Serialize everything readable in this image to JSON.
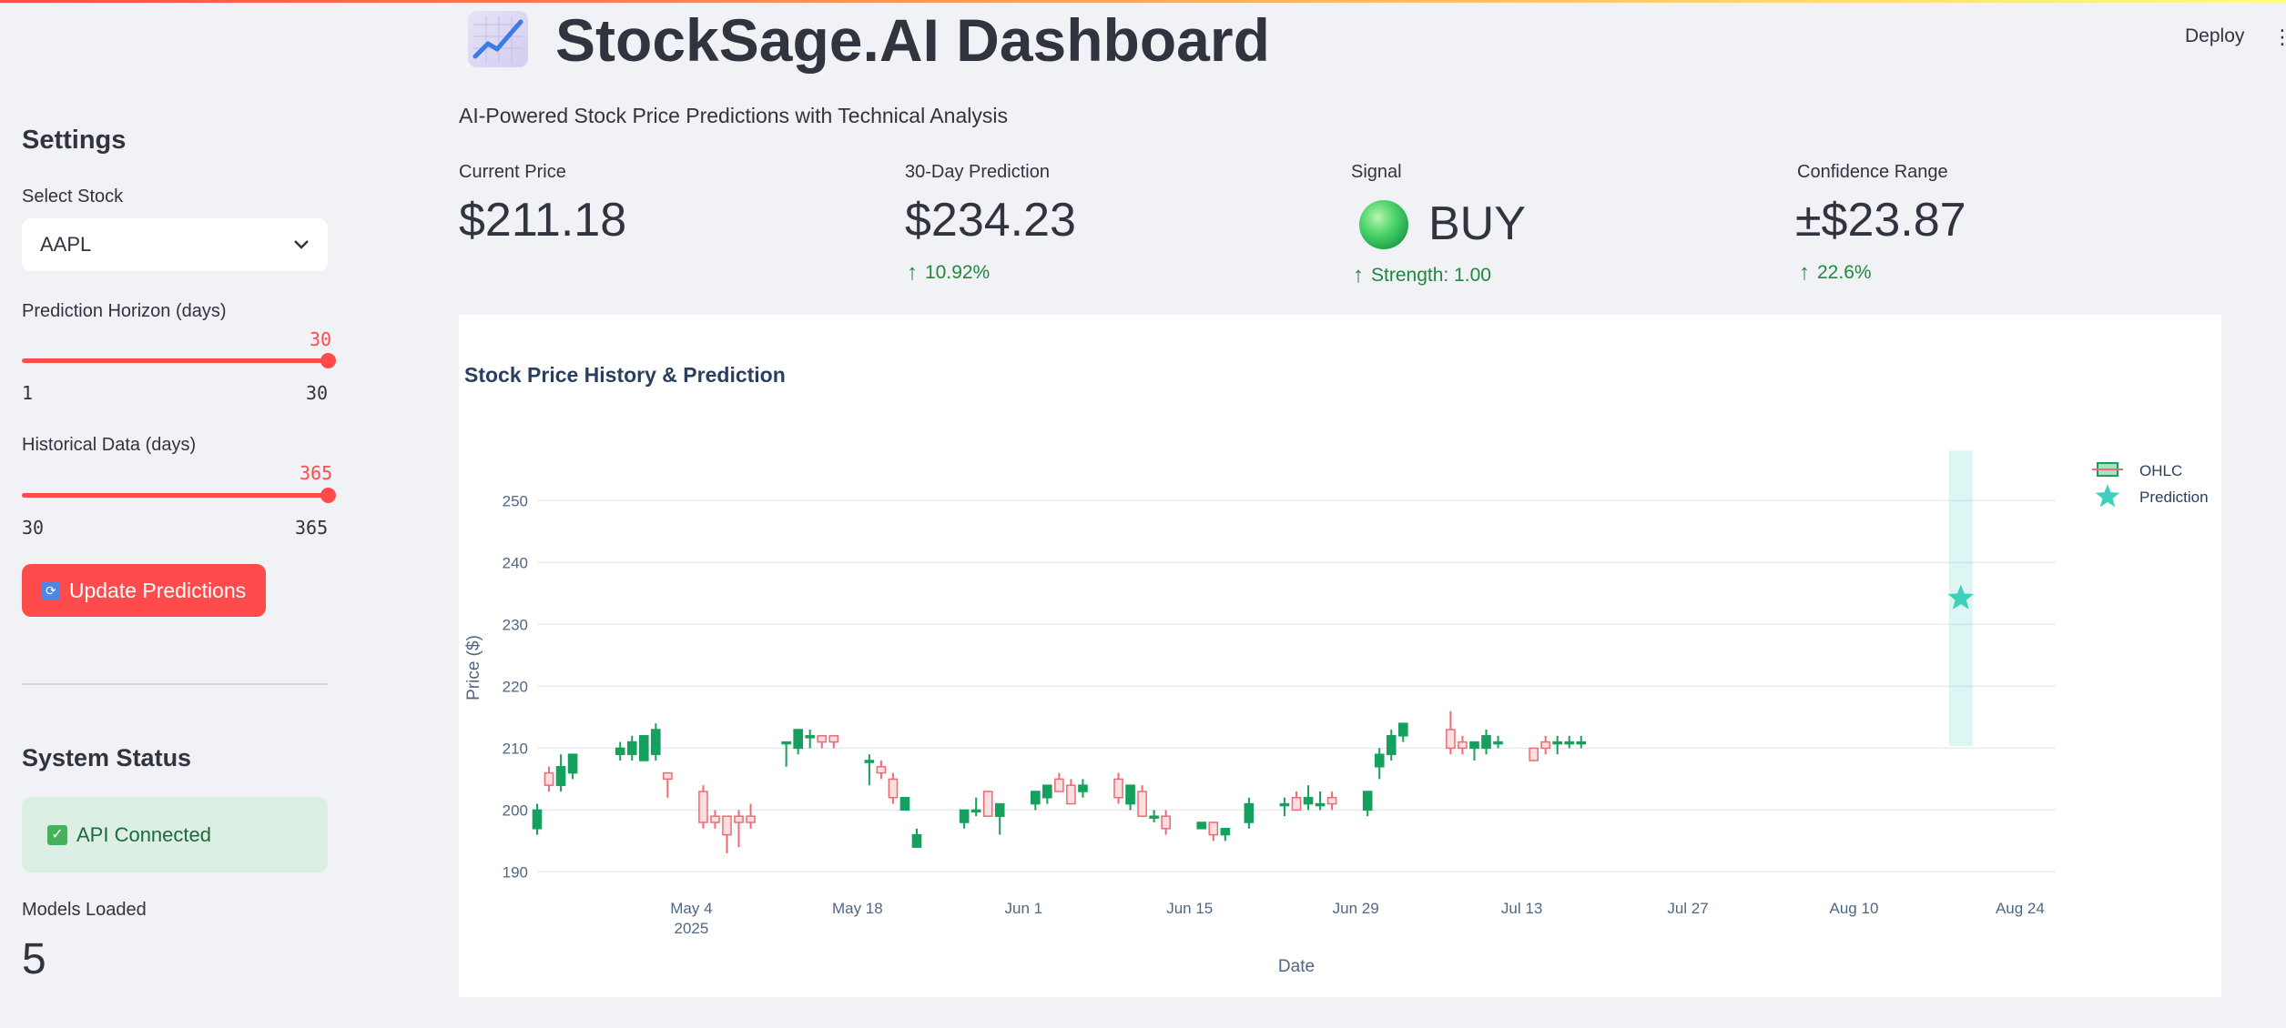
{
  "header": {
    "deploy_label": "Deploy",
    "menu_glyph": "⋮"
  },
  "sidebar": {
    "settings_title": "Settings",
    "select_stock_label": "Select Stock",
    "select_stock_value": "AAPL",
    "horizon": {
      "label": "Prediction Horizon (days)",
      "value": "30",
      "min": "1",
      "max": "30"
    },
    "history": {
      "label": "Historical Data (days)",
      "value": "365",
      "min": "30",
      "max": "365"
    },
    "update_button": "Update Predictions",
    "system_status_title": "System Status",
    "api_status": "API Connected",
    "models_loaded_label": "Models Loaded",
    "models_loaded_value": "5"
  },
  "main": {
    "title": "StockSage.AI Dashboard",
    "subtitle": "AI-Powered Stock Price Predictions with Technical Analysis",
    "metrics": {
      "current_price": {
        "label": "Current Price",
        "value": "$211.18"
      },
      "prediction": {
        "label": "30-Day Prediction",
        "value": "$234.23",
        "delta": "10.92%"
      },
      "signal": {
        "label": "Signal",
        "value": "BUY",
        "delta": "Strength: 1.00"
      },
      "confidence": {
        "label": "Confidence Range",
        "value": "±$23.87",
        "delta": "22.6%"
      }
    }
  },
  "colors": {
    "accent": "#ff4b4b",
    "up": "#21873d",
    "candle_up": "#16a05e",
    "candle_down": "#f06a72",
    "prediction": "#3fd0bd"
  },
  "chart_data": {
    "type": "candlestick",
    "title": "Stock Price History & Prediction",
    "xlabel": "Date",
    "ylabel": "Price ($)",
    "ylim": [
      188,
      258
    ],
    "xlim": [
      "2025-04-21",
      "2025-08-27"
    ],
    "yticks": [
      190,
      200,
      210,
      220,
      230,
      240,
      250
    ],
    "xticks": [
      {
        "date": "2025-05-04",
        "label": "May 4",
        "sublabel": "2025"
      },
      {
        "date": "2025-05-18",
        "label": "May 18",
        "sublabel": ""
      },
      {
        "date": "2025-06-01",
        "label": "Jun 1",
        "sublabel": ""
      },
      {
        "date": "2025-06-15",
        "label": "Jun 15",
        "sublabel": ""
      },
      {
        "date": "2025-06-29",
        "label": "Jun 29",
        "sublabel": ""
      },
      {
        "date": "2025-07-13",
        "label": "Jul 13",
        "sublabel": ""
      },
      {
        "date": "2025-07-27",
        "label": "Jul 27",
        "sublabel": ""
      },
      {
        "date": "2025-08-10",
        "label": "Aug 10",
        "sublabel": ""
      },
      {
        "date": "2025-08-24",
        "label": "Aug 24",
        "sublabel": ""
      }
    ],
    "legend": [
      "OHLC",
      "Prediction"
    ],
    "legend_position": "top-right",
    "ohlc": [
      {
        "date": "2025-04-21",
        "open": 197,
        "high": 201,
        "low": 196,
        "close": 200
      },
      {
        "date": "2025-04-22",
        "open": 206,
        "high": 207,
        "low": 203,
        "close": 204
      },
      {
        "date": "2025-04-23",
        "open": 204,
        "high": 209,
        "low": 203,
        "close": 207
      },
      {
        "date": "2025-04-24",
        "open": 206,
        "high": 209,
        "low": 205,
        "close": 209
      },
      {
        "date": "2025-04-28",
        "open": 209,
        "high": 211,
        "low": 208,
        "close": 210
      },
      {
        "date": "2025-04-29",
        "open": 209,
        "high": 212,
        "low": 208,
        "close": 211
      },
      {
        "date": "2025-04-30",
        "open": 208,
        "high": 212,
        "low": 208,
        "close": 212
      },
      {
        "date": "2025-05-01",
        "open": 209,
        "high": 214,
        "low": 208,
        "close": 213
      },
      {
        "date": "2025-05-02",
        "open": 206,
        "high": 206,
        "low": 202,
        "close": 205
      },
      {
        "date": "2025-05-05",
        "open": 203,
        "high": 204,
        "low": 197,
        "close": 198
      },
      {
        "date": "2025-05-06",
        "open": 199,
        "high": 200,
        "low": 197,
        "close": 198
      },
      {
        "date": "2025-05-07",
        "open": 199,
        "high": 199,
        "low": 193,
        "close": 196
      },
      {
        "date": "2025-05-08",
        "open": 199,
        "high": 200,
        "low": 194,
        "close": 198
      },
      {
        "date": "2025-05-09",
        "open": 199,
        "high": 201,
        "low": 197,
        "close": 198
      },
      {
        "date": "2025-05-12",
        "open": 211,
        "high": 211,
        "low": 207,
        "close": 211
      },
      {
        "date": "2025-05-13",
        "open": 210,
        "high": 213,
        "low": 209,
        "close": 213
      },
      {
        "date": "2025-05-14",
        "open": 212,
        "high": 213,
        "low": 210,
        "close": 212
      },
      {
        "date": "2025-05-15",
        "open": 212,
        "high": 212,
        "low": 210,
        "close": 211
      },
      {
        "date": "2025-05-16",
        "open": 212,
        "high": 212,
        "low": 210,
        "close": 211
      },
      {
        "date": "2025-05-19",
        "open": 208,
        "high": 209,
        "low": 204,
        "close": 208
      },
      {
        "date": "2025-05-20",
        "open": 207,
        "high": 208,
        "low": 205,
        "close": 206
      },
      {
        "date": "2025-05-21",
        "open": 205,
        "high": 206,
        "low": 201,
        "close": 202
      },
      {
        "date": "2025-05-22",
        "open": 200,
        "high": 202,
        "low": 200,
        "close": 202
      },
      {
        "date": "2025-05-23",
        "open": 194,
        "high": 197,
        "low": 194,
        "close": 196
      },
      {
        "date": "2025-05-27",
        "open": 198,
        "high": 200,
        "low": 197,
        "close": 200
      },
      {
        "date": "2025-05-28",
        "open": 200,
        "high": 202,
        "low": 199,
        "close": 200
      },
      {
        "date": "2025-05-29",
        "open": 203,
        "high": 203,
        "low": 199,
        "close": 199
      },
      {
        "date": "2025-05-30",
        "open": 199,
        "high": 201,
        "low": 196,
        "close": 201
      },
      {
        "date": "2025-06-02",
        "open": 201,
        "high": 203,
        "low": 200,
        "close": 203
      },
      {
        "date": "2025-06-03",
        "open": 202,
        "high": 204,
        "low": 201,
        "close": 204
      },
      {
        "date": "2025-06-04",
        "open": 205,
        "high": 206,
        "low": 203,
        "close": 203
      },
      {
        "date": "2025-06-05",
        "open": 204,
        "high": 205,
        "low": 201,
        "close": 201
      },
      {
        "date": "2025-06-06",
        "open": 203,
        "high": 205,
        "low": 202,
        "close": 204
      },
      {
        "date": "2025-06-09",
        "open": 205,
        "high": 206,
        "low": 201,
        "close": 202
      },
      {
        "date": "2025-06-10",
        "open": 201,
        "high": 204,
        "low": 200,
        "close": 204
      },
      {
        "date": "2025-06-11",
        "open": 203,
        "high": 204,
        "low": 199,
        "close": 199
      },
      {
        "date": "2025-06-12",
        "open": 199,
        "high": 200,
        "low": 198,
        "close": 199
      },
      {
        "date": "2025-06-13",
        "open": 199,
        "high": 200,
        "low": 196,
        "close": 197
      },
      {
        "date": "2025-06-16",
        "open": 197,
        "high": 198,
        "low": 197,
        "close": 198
      },
      {
        "date": "2025-06-17",
        "open": 198,
        "high": 198,
        "low": 195,
        "close": 196
      },
      {
        "date": "2025-06-18",
        "open": 196,
        "high": 197,
        "low": 195,
        "close": 197
      },
      {
        "date": "2025-06-20",
        "open": 198,
        "high": 202,
        "low": 197,
        "close": 201
      },
      {
        "date": "2025-06-23",
        "open": 201,
        "high": 202,
        "low": 199,
        "close": 201
      },
      {
        "date": "2025-06-24",
        "open": 202,
        "high": 203,
        "low": 200,
        "close": 200
      },
      {
        "date": "2025-06-25",
        "open": 201,
        "high": 204,
        "low": 200,
        "close": 202
      },
      {
        "date": "2025-06-26",
        "open": 201,
        "high": 203,
        "low": 200,
        "close": 201
      },
      {
        "date": "2025-06-27",
        "open": 202,
        "high": 203,
        "low": 200,
        "close": 201
      },
      {
        "date": "2025-06-30",
        "open": 200,
        "high": 203,
        "low": 199,
        "close": 203
      },
      {
        "date": "2025-07-01",
        "open": 207,
        "high": 210,
        "low": 205,
        "close": 209
      },
      {
        "date": "2025-07-02",
        "open": 209,
        "high": 213,
        "low": 208,
        "close": 212
      },
      {
        "date": "2025-07-03",
        "open": 212,
        "high": 214,
        "low": 211,
        "close": 214
      },
      {
        "date": "2025-07-07",
        "open": 213,
        "high": 216,
        "low": 209,
        "close": 210
      },
      {
        "date": "2025-07-08",
        "open": 211,
        "high": 212,
        "low": 209,
        "close": 210
      },
      {
        "date": "2025-07-09",
        "open": 210,
        "high": 211,
        "low": 208,
        "close": 211
      },
      {
        "date": "2025-07-10",
        "open": 210,
        "high": 213,
        "low": 209,
        "close": 212
      },
      {
        "date": "2025-07-11",
        "open": 211,
        "high": 212,
        "low": 210,
        "close": 211
      },
      {
        "date": "2025-07-14",
        "open": 210,
        "high": 210,
        "low": 208,
        "close": 208
      },
      {
        "date": "2025-07-15",
        "open": 211,
        "high": 212,
        "low": 209,
        "close": 210
      },
      {
        "date": "2025-07-16",
        "open": 211,
        "high": 212,
        "low": 209,
        "close": 211
      },
      {
        "date": "2025-07-17",
        "open": 211,
        "high": 212,
        "low": 210,
        "close": 211
      },
      {
        "date": "2025-07-18",
        "open": 211,
        "high": 212,
        "low": 210,
        "close": 211
      }
    ],
    "prediction": {
      "date": "2025-08-19",
      "value": 234.23,
      "lower": 210.36,
      "upper": 258.1
    }
  }
}
